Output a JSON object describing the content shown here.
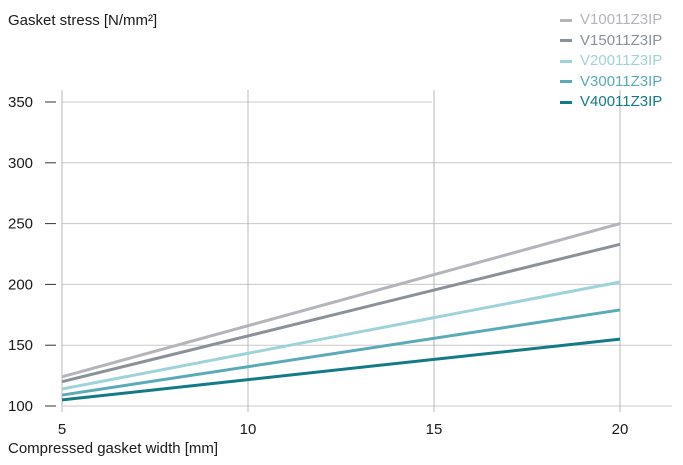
{
  "chart_data": {
    "type": "line",
    "ylabel": "Gasket stress [N/mm²]",
    "xlabel": "Compressed gasket width [mm]",
    "xlim": [
      5,
      20
    ],
    "ylim": [
      100,
      350
    ],
    "x_ticks": [
      5,
      10,
      15,
      20
    ],
    "y_ticks": [
      100,
      150,
      200,
      250,
      300,
      350
    ],
    "grid": true,
    "legend_position": "top-right",
    "series": [
      {
        "name": "V10011Z3IP",
        "color": "#b3b5bb",
        "x": [
          5,
          20
        ],
        "y": [
          124,
          250
        ]
      },
      {
        "name": "V15011Z3IP",
        "color": "#8a9199",
        "x": [
          5,
          20
        ],
        "y": [
          120,
          233
        ]
      },
      {
        "name": "V20011Z3IP",
        "color": "#9ed3d9",
        "x": [
          5,
          20
        ],
        "y": [
          114,
          202
        ]
      },
      {
        "name": "V30011Z3IP",
        "color": "#5aaab8",
        "x": [
          5,
          20
        ],
        "y": [
          109,
          179
        ]
      },
      {
        "name": "V40011Z3IP",
        "color": "#137a86",
        "x": [
          5,
          20
        ],
        "y": [
          105,
          155
        ]
      }
    ]
  }
}
